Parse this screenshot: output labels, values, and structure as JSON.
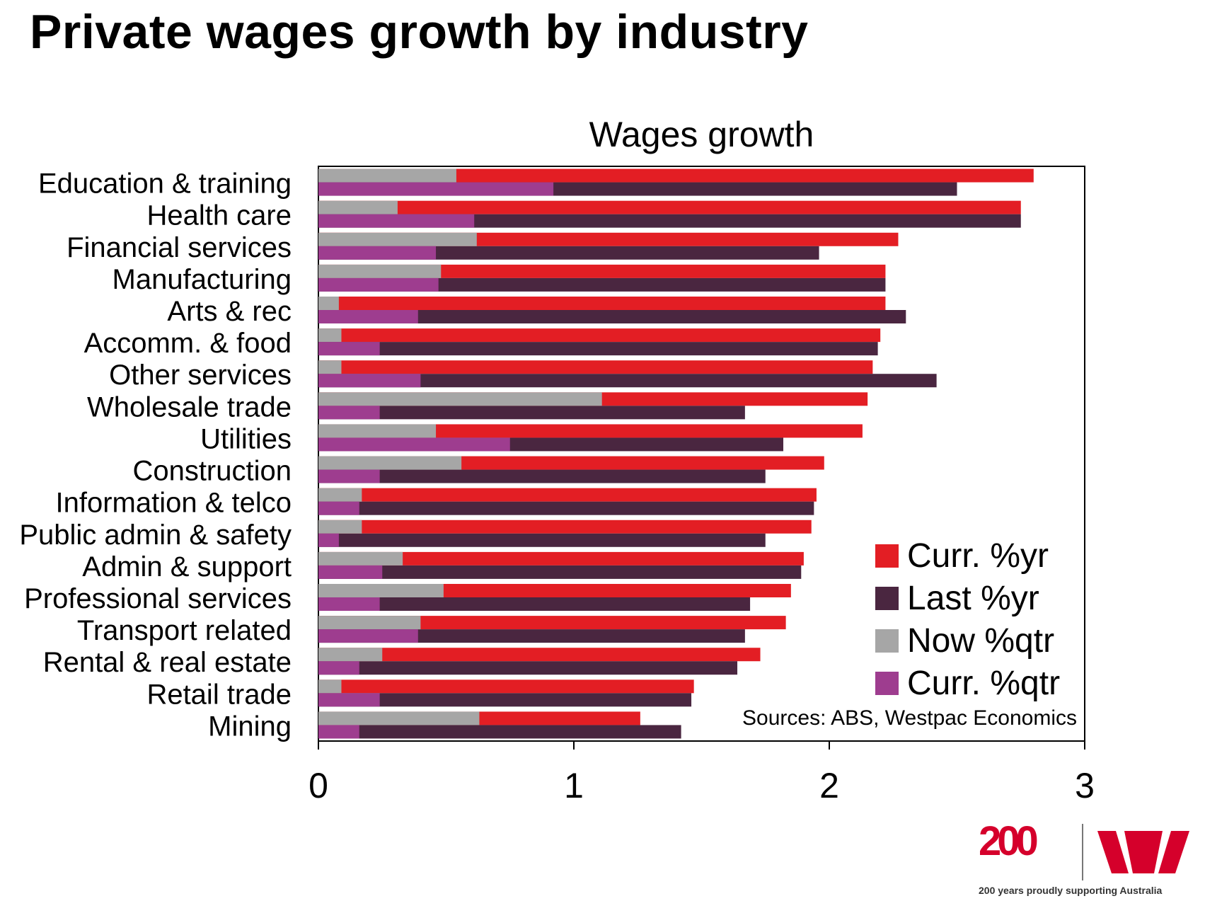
{
  "page": {
    "title": "Private wages growth by industry"
  },
  "chart_data": {
    "type": "bar",
    "orientation": "horizontal",
    "title": "Wages growth",
    "categories": [
      "Education & training",
      "Health care",
      "Financial services",
      "Manufacturing",
      "Arts & rec",
      "Accomm. & food",
      "Other services",
      "Wholesale trade",
      "Utilities",
      "Construction",
      "Information & telco",
      "Public admin & safety",
      "Admin & support",
      "Professional services",
      "Transport related",
      "Rental & real estate",
      "Retail trade",
      "Mining"
    ],
    "series": [
      {
        "name": "Curr. %yr",
        "color": "#e31e24",
        "values": [
          2.8,
          2.75,
          2.27,
          2.22,
          2.22,
          2.2,
          2.17,
          2.15,
          2.13,
          1.98,
          1.95,
          1.93,
          1.9,
          1.85,
          1.83,
          1.73,
          1.47,
          1.26
        ]
      },
      {
        "name": "Last %yr",
        "color": "#4a2640",
        "values": [
          2.5,
          2.75,
          1.96,
          2.22,
          2.3,
          2.19,
          2.42,
          1.67,
          1.82,
          1.75,
          1.94,
          1.75,
          1.89,
          1.69,
          1.67,
          1.64,
          1.46,
          1.42
        ]
      },
      {
        "name": "Now %qtr",
        "color": "#a6a6a6",
        "values": [
          0.54,
          0.31,
          0.62,
          0.48,
          0.08,
          0.09,
          0.09,
          1.11,
          0.46,
          0.56,
          0.17,
          0.17,
          0.33,
          0.49,
          0.4,
          0.25,
          0.09,
          0.63
        ]
      },
      {
        "name": "Curr. %qtr",
        "color": "#9e3d8f",
        "values": [
          0.92,
          0.61,
          0.46,
          0.47,
          0.39,
          0.24,
          0.4,
          0.24,
          0.75,
          0.24,
          0.16,
          0.08,
          0.25,
          0.24,
          0.39,
          0.16,
          0.24,
          0.16
        ]
      }
    ],
    "xlim": [
      0,
      3
    ],
    "xticks": [
      "0",
      "1",
      "2",
      "3"
    ],
    "grid": false,
    "legend_position": "bottom-right",
    "source": "Sources: ABS, Westpac Economics"
  },
  "branding": {
    "logo_number": "200",
    "tagline": "200 years proudly supporting Australia",
    "brand_color": "#d5002b"
  }
}
